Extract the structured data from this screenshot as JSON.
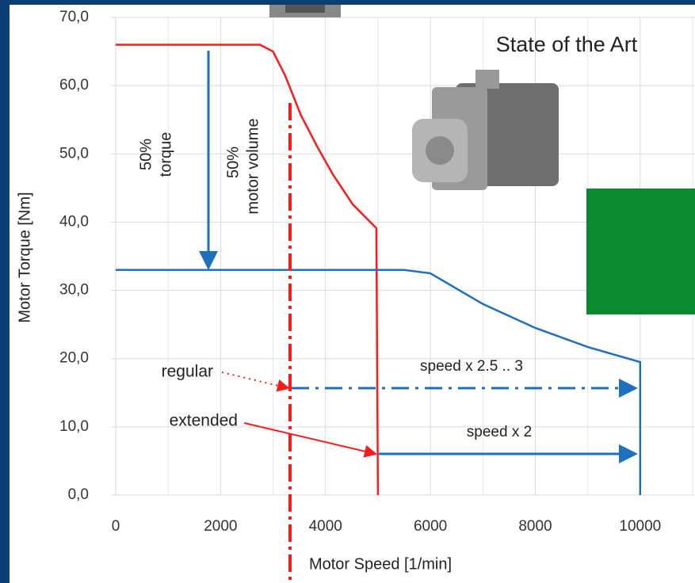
{
  "chart_data": {
    "type": "line",
    "title": "State of the Art",
    "x_label": "Motor Speed [1/min]",
    "y_label": "Motor Torque [Nm]",
    "xlim": [
      0,
      11000
    ],
    "ylim": [
      0,
      70
    ],
    "xticks": [
      0,
      2000,
      4000,
      6000,
      8000,
      10000
    ],
    "yticks": [
      {
        "value": 0,
        "label": "0,0"
      },
      {
        "value": 10,
        "label": "10,0"
      },
      {
        "value": 20,
        "label": "20,0"
      },
      {
        "value": 30,
        "label": "30,0"
      },
      {
        "value": 40,
        "label": "40,0"
      },
      {
        "value": 50,
        "label": "50,0"
      },
      {
        "value": 60,
        "label": "60,0"
      },
      {
        "value": 70,
        "label": "70,0"
      }
    ],
    "grid": true,
    "series": [
      {
        "color": "#ff1a1a",
        "x": [
          0,
          2750,
          3000,
          3230,
          3530,
          3840,
          4140,
          4520,
          4970,
          5000
        ],
        "values": [
          66,
          66,
          65,
          61.5,
          55.7,
          51.1,
          47,
          42.6,
          39.1,
          0
        ]
      },
      {
        "color": "#1f6fbf",
        "x": [
          0,
          5500,
          6000,
          7000,
          8000,
          9000,
          10000,
          10000
        ],
        "values": [
          33,
          33,
          32.5,
          28,
          24.5,
          21.7,
          19.5,
          0
        ]
      }
    ],
    "annotations": {
      "torque_pct": "50%",
      "torque": "torque",
      "volume_pct": "50%",
      "volume": "motor volume",
      "regular": "regular",
      "extended": "extended",
      "speed_regular": "speed x 2.5 .. 3",
      "speed_extended": "speed x 2"
    }
  }
}
